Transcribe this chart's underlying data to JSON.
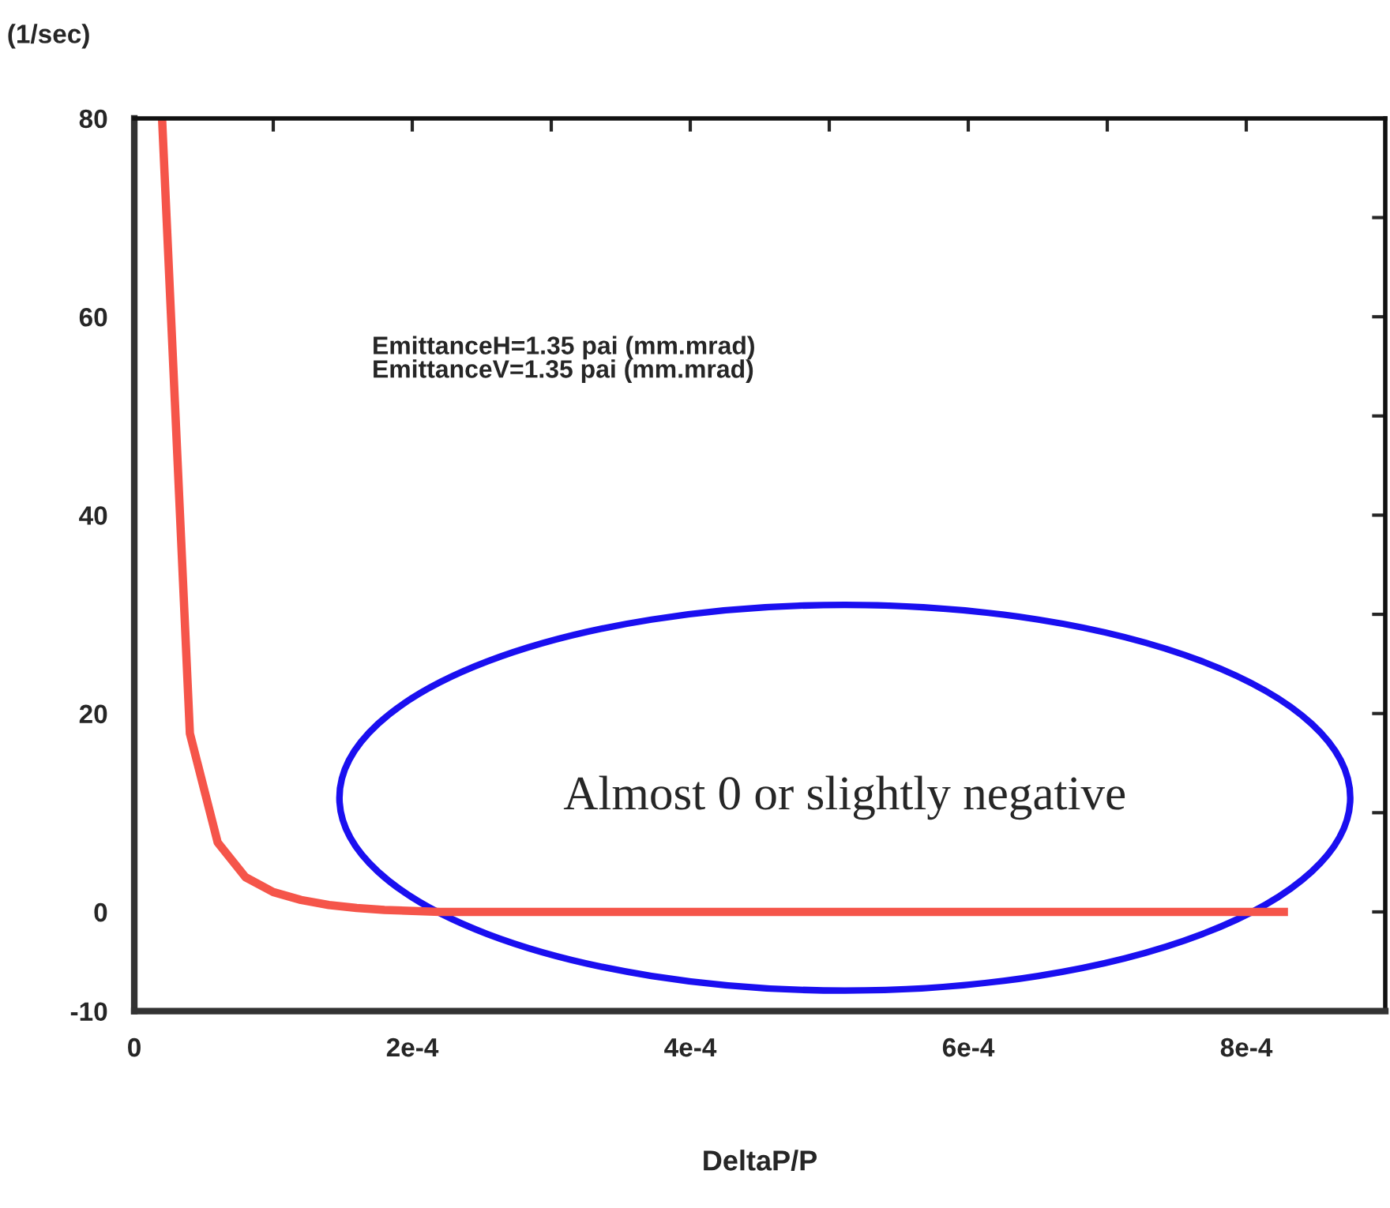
{
  "chart_data": {
    "type": "line",
    "xlabel": "DeltaP/P",
    "ylabel": "(1/sec)",
    "x": [
      2e-05,
      4e-05,
      6e-05,
      8e-05,
      0.0001,
      0.00012,
      0.00014,
      0.00016,
      0.00018,
      0.0002,
      0.00022,
      0.0003,
      0.0004,
      0.0005,
      0.0006,
      0.0007,
      0.0008,
      0.00083
    ],
    "series": [
      {
        "color": "#f5554a",
        "values": [
          80,
          18,
          7,
          3.5,
          2,
          1.2,
          0.7,
          0.4,
          0.2,
          0.1,
          0,
          0,
          0,
          0,
          0,
          0,
          0,
          0
        ]
      }
    ],
    "xlim": [
      0,
      0.0009
    ],
    "ylim": [
      -10,
      80
    ],
    "xticks": [
      0,
      {
        "value": 0.0001,
        "label": null
      },
      {
        "value": 0.0002,
        "label": "2e-4"
      },
      {
        "value": 0.0003,
        "label": null
      },
      {
        "value": 0.0004,
        "label": "4e-4"
      },
      {
        "value": 0.0005,
        "label": null
      },
      {
        "value": 0.0006,
        "label": "6e-4"
      },
      {
        "value": 0.0007,
        "label": null
      },
      {
        "value": 0.0008,
        "label": "8e-4"
      }
    ],
    "yticks": [
      -10,
      0,
      {
        "value": 10,
        "label": null
      },
      20,
      {
        "value": 30,
        "label": null
      },
      40,
      {
        "value": 50,
        "label": null
      },
      60,
      {
        "value": 70,
        "label": null
      },
      80
    ],
    "grid": false,
    "legend": false,
    "marker": "none",
    "line_style": "solid",
    "annotations": [
      "EmittanceH=1.35 pai (mm.mrad)\nEmittanceV=1.35 pai (mm.mrad)",
      "Almost 0 or slightly negative"
    ]
  }
}
